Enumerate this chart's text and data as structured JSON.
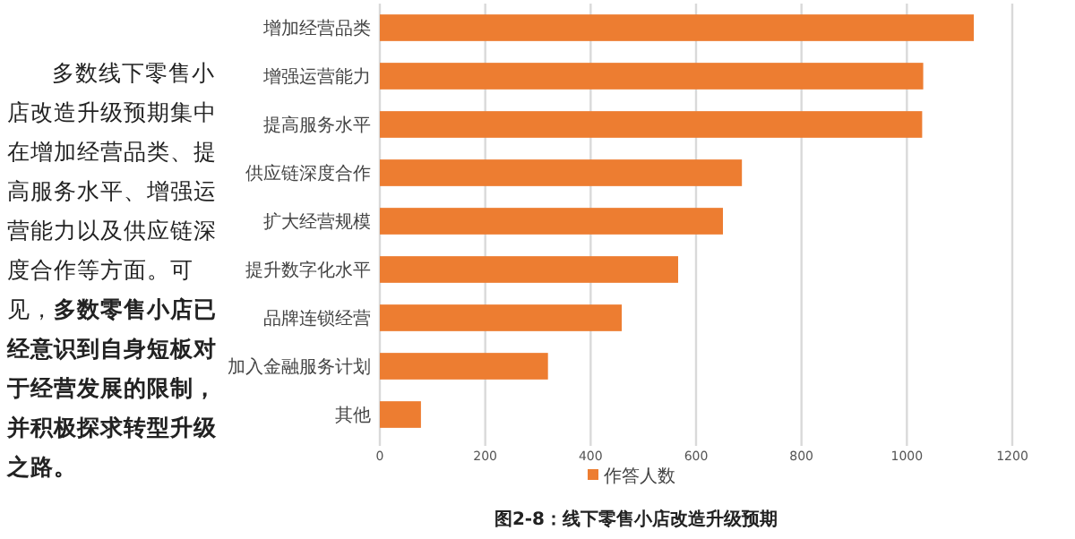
{
  "chart_data": {
    "type": "bar",
    "orientation": "horizontal",
    "title": "图2-8：线下零售小店改造升级预期",
    "categories": [
      "增加经营品类",
      "增强运营能力",
      "提高服务水平",
      "供应链深度合作",
      "扩大经营规模",
      "提升数字化水平",
      "品牌连锁经营",
      "加入金融服务计划",
      "其他"
    ],
    "series": [
      {
        "name": "作答人数",
        "color": "#ed7d31",
        "values": [
          1127,
          1031,
          1029,
          687,
          651,
          566,
          459,
          319,
          78
        ]
      }
    ],
    "xlim": [
      0,
      1200
    ],
    "xticks": [
      0,
      200,
      400,
      600,
      800,
      1000,
      1200
    ],
    "grid": "x",
    "legend": "bottom",
    "annotations": [
      "多数线下零售小店改造升级预期集中在增加经营品类、提高服务水平、增强运营能力以及供应链深度合作等方面。可见，**多数零售小店已经意识到自身短板对于经营发展的限制，并积极探求转型升级之路。**"
    ]
  }
}
